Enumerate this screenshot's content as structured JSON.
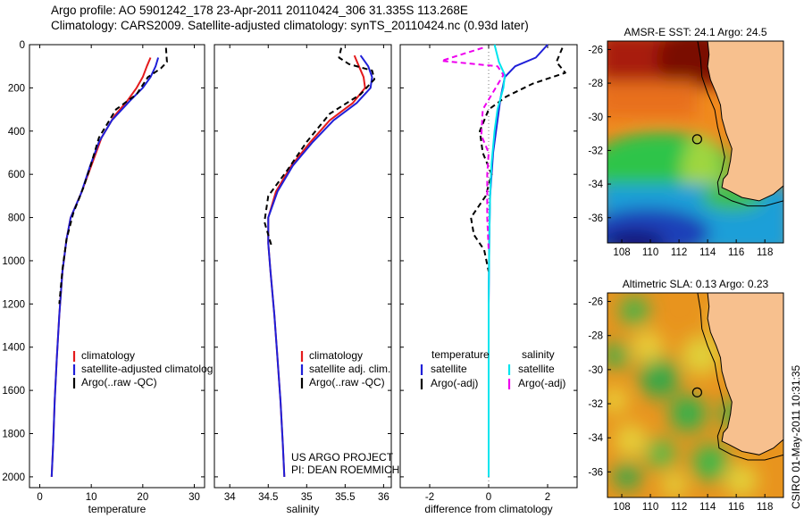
{
  "header": {
    "line1": "Argo profile: AO 5901242_178 23-Apr-2011 20110424_306 31.335S 113.268E",
    "line2": "Climatology: CARS2009. Satellite-adjusted climatology: synTS_20110424.nc (0.93d later)"
  },
  "stamp": "CSIRO 01-May-2011 10:31:35",
  "colors": {
    "red": "#e41a1c",
    "blue": "#1f1fd8",
    "black": "#000000",
    "cyan": "#00e5ee",
    "magenta": "#ee00ee",
    "land": "#f7c08e"
  },
  "chart_data": [
    {
      "type": "line",
      "id": "temperature",
      "xlabel": "temperature",
      "ylabel": "",
      "xlim": [
        -2,
        32
      ],
      "ylim": [
        2050,
        0
      ],
      "xticks": [
        0,
        10,
        20,
        30
      ],
      "yticks": [
        0,
        200,
        400,
        600,
        800,
        1000,
        1200,
        1400,
        1600,
        1800,
        2000
      ],
      "legend": {
        "placement": "lower-center",
        "items": [
          "climatology",
          "satellite-adjusted climatolog",
          "Argo(..raw -QC)"
        ]
      },
      "series": [
        {
          "name": "climatology",
          "color": "red",
          "dash": "none",
          "x": [
            21.5,
            20.8,
            20.0,
            18.8,
            17.0,
            14.5,
            12.0,
            10.0,
            8.0,
            6.0,
            5.2,
            4.4,
            3.8,
            3.3,
            2.9,
            2.6,
            2.3
          ],
          "y": [
            60,
            100,
            150,
            200,
            260,
            330,
            430,
            560,
            690,
            800,
            900,
            1050,
            1250,
            1450,
            1650,
            1850,
            2000
          ]
        },
        {
          "name": "satellite-adjusted climatolog",
          "color": "blue",
          "dash": "none",
          "x": [
            23.0,
            22.5,
            21.5,
            20.0,
            17.5,
            14.0,
            11.5,
            9.8,
            8.0,
            6.0,
            5.2,
            4.4,
            3.8,
            3.3,
            2.9,
            2.6,
            2.3
          ],
          "y": [
            60,
            100,
            150,
            200,
            260,
            350,
            450,
            560,
            690,
            800,
            900,
            1050,
            1250,
            1450,
            1650,
            1850,
            2000
          ]
        },
        {
          "name": "Argo(..raw -QC)",
          "color": "black",
          "dash": "6,4",
          "x": [
            24.5,
            24.7,
            23.5,
            21.0,
            18.8,
            14.8,
            11.5,
            10.0,
            8.5,
            6.5,
            5.2,
            4.4,
            3.8
          ],
          "y": [
            15,
            80,
            110,
            150,
            230,
            300,
            430,
            550,
            660,
            780,
            900,
            1040,
            1200
          ]
        }
      ]
    },
    {
      "type": "line",
      "id": "salinity",
      "xlabel": "salinity",
      "ylabel": "",
      "xlim": [
        33.8,
        36.1
      ],
      "ylim": [
        2050,
        0
      ],
      "xticks": [
        34,
        34.5,
        35,
        35.5,
        36
      ],
      "yticks": [
        0,
        200,
        400,
        600,
        800,
        1000,
        1200,
        1400,
        1600,
        1800,
        2000
      ],
      "legend": {
        "placement": "lower-center",
        "items": [
          "climatology",
          "satellite adj. clim.",
          "Argo(..raw -QC)"
        ]
      },
      "annotations": [
        "US ARGO PROJECT",
        "PI: DEAN ROEMMICH"
      ],
      "series": [
        {
          "name": "climatology",
          "color": "red",
          "dash": "none",
          "x": [
            35.62,
            35.68,
            35.74,
            35.76,
            35.6,
            35.3,
            35.05,
            34.8,
            34.6,
            34.5,
            34.5,
            34.53,
            34.58,
            34.62,
            34.66,
            34.69,
            34.71
          ],
          "y": [
            50,
            100,
            150,
            200,
            270,
            350,
            450,
            560,
            680,
            800,
            920,
            1050,
            1250,
            1450,
            1650,
            1850,
            2000
          ]
        },
        {
          "name": "satellite adj. clim.",
          "color": "blue",
          "dash": "none",
          "x": [
            35.7,
            35.8,
            35.85,
            35.83,
            35.65,
            35.35,
            35.08,
            34.82,
            34.62,
            34.5,
            34.5,
            34.53,
            34.58,
            34.62,
            34.66,
            34.69,
            34.71
          ],
          "y": [
            50,
            100,
            150,
            200,
            270,
            350,
            450,
            560,
            680,
            800,
            920,
            1050,
            1250,
            1450,
            1650,
            1850,
            2000
          ]
        },
        {
          "name": "Argo(..raw -QC)",
          "color": "black",
          "dash": "6,4",
          "x": [
            35.45,
            35.42,
            35.55,
            35.85,
            35.88,
            35.7,
            35.3,
            35.0,
            34.75,
            34.5,
            34.45,
            34.5,
            34.55
          ],
          "y": [
            15,
            60,
            90,
            120,
            160,
            230,
            320,
            450,
            580,
            700,
            820,
            880,
            940
          ]
        }
      ]
    },
    {
      "type": "line",
      "id": "difference",
      "xlabel": "difference from climatology",
      "ylabel": "",
      "xlim": [
        -3,
        3
      ],
      "ylim": [
        2050,
        0
      ],
      "xticks": [
        -2,
        0,
        2
      ],
      "yticks": [
        0,
        200,
        400,
        600,
        800,
        1000,
        1200,
        1400,
        1600,
        1800,
        2000
      ],
      "legend": {
        "placement": "lower-center",
        "col1_header": "temperature",
        "col2_header": "salinity",
        "items": [
          "satellite",
          "Argo(-adj)",
          "satellite",
          "Argo(-adj)"
        ]
      },
      "series": [
        {
          "name": "satellite",
          "group": "temperature",
          "color": "blue",
          "dash": "none",
          "x": [
            2.0,
            1.6,
            0.9,
            0.55,
            0.4,
            0.3,
            0.15,
            0.05,
            0.02,
            0.0,
            0.0,
            0.0
          ],
          "y": [
            0,
            60,
            100,
            150,
            250,
            350,
            500,
            700,
            900,
            1200,
            1600,
            2000
          ]
        },
        {
          "name": "Argo(-adj)",
          "group": "temperature",
          "color": "black",
          "dash": "6,4",
          "x": [
            2.5,
            2.3,
            2.6,
            1.5,
            0.6,
            0.0,
            -0.3,
            -0.2,
            0.1,
            -0.1,
            -0.6,
            -0.5,
            -0.15,
            0.0
          ],
          "y": [
            15,
            80,
            130,
            180,
            240,
            300,
            400,
            500,
            600,
            700,
            800,
            880,
            950,
            1050
          ]
        },
        {
          "name": "satellite",
          "group": "salinity",
          "color": "cyan",
          "dash": "none",
          "x": [
            0.2,
            0.35,
            0.55,
            0.5,
            0.3,
            0.2,
            0.1,
            0.05,
            0.02,
            0.0,
            0.0
          ],
          "y": [
            0,
            80,
            140,
            200,
            300,
            400,
            550,
            700,
            900,
            1200,
            2000
          ]
        },
        {
          "name": "Argo(-adj)",
          "group": "salinity",
          "color": "magenta",
          "dash": "6,4",
          "x": [
            -0.2,
            -0.8,
            -1.6,
            0.3,
            0.5,
            -0.2,
            -0.25,
            0.0,
            -0.05,
            -0.05,
            0.0
          ],
          "y": [
            15,
            40,
            75,
            100,
            140,
            300,
            420,
            500,
            600,
            800,
            950
          ]
        }
      ]
    }
  ],
  "maps": [
    {
      "id": "sst",
      "title": "AMSR-E SST: 24.1 Argo: 24.5",
      "xticks": [
        "108",
        "110",
        "112",
        "114",
        "116",
        "118"
      ],
      "yticks": [
        "-26",
        "-28",
        "-30",
        "-32",
        "-34",
        "-36"
      ],
      "xlim": [
        107,
        119.3
      ],
      "ylim": [
        -37.5,
        -25.5
      ],
      "marker": {
        "lon": 113.268,
        "lat": -31.335
      }
    },
    {
      "id": "sla",
      "title": "Altimetric SLA: 0.13 Argo: 0.23",
      "xticks": [
        "108",
        "110",
        "112",
        "114",
        "116",
        "118"
      ],
      "yticks": [
        "-26",
        "-28",
        "-30",
        "-32",
        "-34",
        "-36"
      ],
      "xlim": [
        107,
        119.3
      ],
      "ylim": [
        -37.5,
        -25.5
      ],
      "marker": {
        "lon": 113.268,
        "lat": -31.335
      }
    }
  ]
}
